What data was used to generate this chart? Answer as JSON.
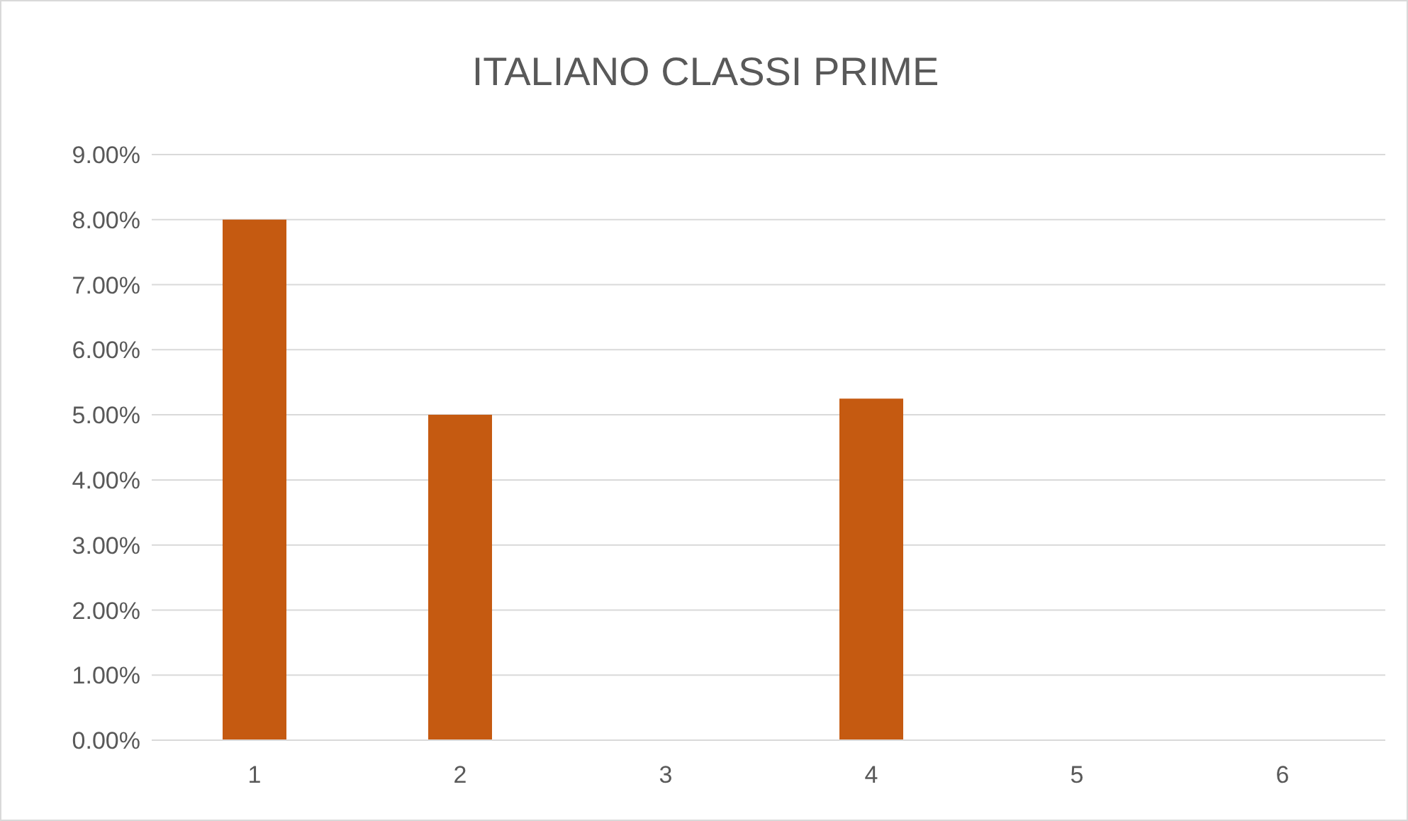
{
  "chart_data": {
    "type": "bar",
    "title": "ITALIANO CLASSI PRIME",
    "categories": [
      "1",
      "2",
      "3",
      "4",
      "5",
      "6"
    ],
    "values": [
      8,
      5,
      0,
      5.25,
      0,
      0
    ],
    "color": "#c55a11",
    "ylim": [
      0,
      9
    ],
    "yticks": [
      {
        "value": 0,
        "label": "0.00%"
      },
      {
        "value": 1,
        "label": "1.00%"
      },
      {
        "value": 2,
        "label": "2.00%"
      },
      {
        "value": 3,
        "label": "3.00%"
      },
      {
        "value": 4,
        "label": "4.00%"
      },
      {
        "value": 5,
        "label": "5.00%"
      },
      {
        "value": 6,
        "label": "6.00%"
      },
      {
        "value": 7,
        "label": "7.00%"
      },
      {
        "value": 8,
        "label": "8.00%"
      },
      {
        "value": 9,
        "label": "9.00%"
      }
    ],
    "grid": "y",
    "legend": false
  }
}
